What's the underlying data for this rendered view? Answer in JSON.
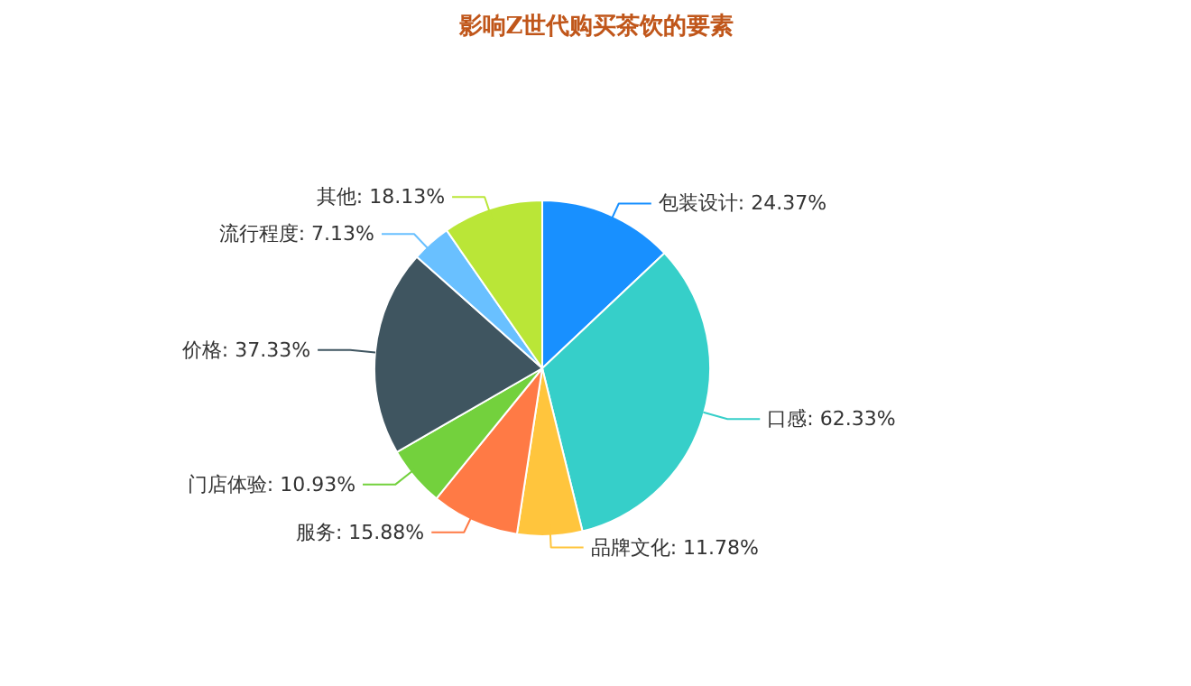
{
  "chart_data": {
    "type": "pie",
    "title": "影响Z世代购买茶饮的要素",
    "categories": [
      "包装设计",
      "口感",
      "品牌文化",
      "服务",
      "门店体验",
      "价格",
      "流行程度",
      "其他"
    ],
    "values": [
      24.37,
      62.33,
      11.78,
      15.88,
      10.93,
      37.33,
      7.13,
      18.13
    ],
    "value_labels": [
      "24.37%",
      "62.33%",
      "11.78%",
      "15.88%",
      "10.93%",
      "37.33%",
      "7.13%",
      "18.13%"
    ],
    "colors": [
      "#1890ff",
      "#36cfc9",
      "#ffc53d",
      "#ff7a45",
      "#73d13d",
      "#3f5560",
      "#69c0ff",
      "#bae637"
    ]
  }
}
